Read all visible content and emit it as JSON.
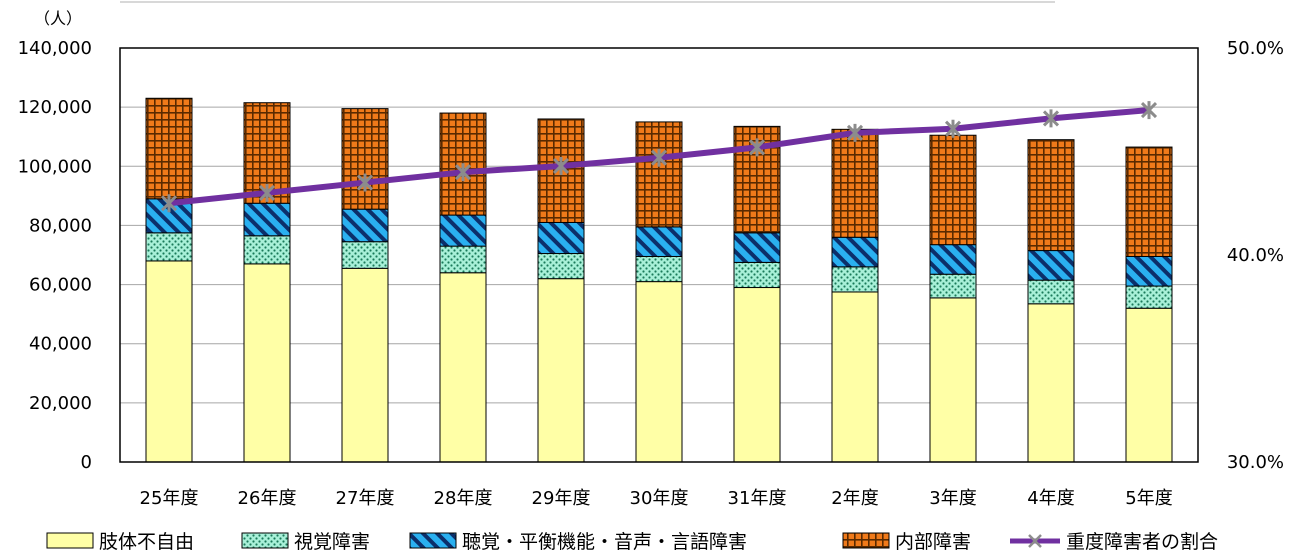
{
  "chart_data": {
    "type": "bar",
    "stacked": true,
    "y_unit": "（人）",
    "categories": [
      "25年度",
      "26年度",
      "27年度",
      "28年度",
      "29年度",
      "30年度",
      "31年度",
      "2年度",
      "3年度",
      "4年度",
      "5年度"
    ],
    "series": [
      {
        "name": "肢体不自由",
        "type": "bar",
        "axis": "left",
        "color": "#ffffa6",
        "pattern": "solid",
        "values": [
          68000,
          67000,
          65500,
          64000,
          62000,
          61000,
          59000,
          57500,
          55500,
          53500,
          52000
        ]
      },
      {
        "name": "視覚障害",
        "type": "bar",
        "axis": "left",
        "color": "#a8f0d8",
        "pattern": "dots",
        "values": [
          9500,
          9500,
          9000,
          9000,
          8500,
          8500,
          8500,
          8500,
          8000,
          8000,
          7500
        ]
      },
      {
        "name": "聴覚・平衡機能・音声・言語障害",
        "type": "bar",
        "axis": "left",
        "color": "#2ab0f0",
        "pattern": "stripes",
        "values": [
          11500,
          11000,
          11000,
          10500,
          10500,
          10000,
          10000,
          10000,
          10000,
          10000,
          10000
        ]
      },
      {
        "name": "内部障害",
        "type": "bar",
        "axis": "left",
        "color": "#f07a1a",
        "pattern": "grid",
        "values": [
          34000,
          34000,
          34000,
          34500,
          35000,
          35500,
          36000,
          36500,
          37000,
          37500,
          37000
        ]
      },
      {
        "name": "重度障害者の割合",
        "type": "line",
        "axis": "right",
        "color": "#7030a0",
        "values": [
          42.5,
          43.0,
          43.5,
          44.0,
          44.3,
          44.7,
          45.2,
          45.9,
          46.1,
          46.6,
          47.0
        ]
      }
    ],
    "y_left": {
      "min": 0,
      "max": 140000,
      "step": 20000,
      "tick_labels": [
        "0",
        "20,000",
        "40,000",
        "60,000",
        "80,000",
        "100,000",
        "120,000",
        "140,000"
      ]
    },
    "y_right": {
      "min": 30,
      "max": 50,
      "step": 10,
      "tick_labels": [
        "30.0%",
        "40.0%",
        "50.0%"
      ]
    },
    "grid": true,
    "legend_position": "bottom"
  }
}
